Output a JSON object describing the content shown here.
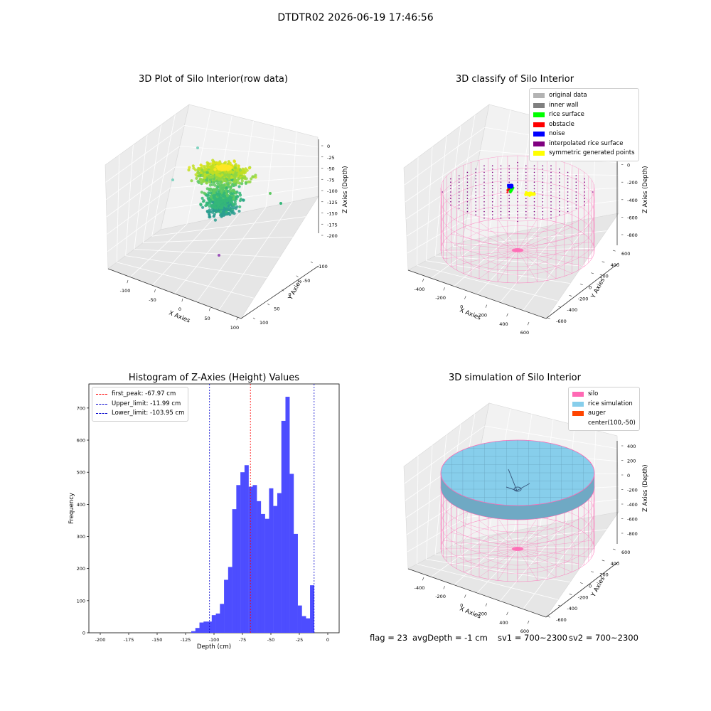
{
  "suptitle": "DTDTR02 2026-06-19 17:46:56",
  "status": {
    "flag": "flag = 23",
    "avg_depth": "avgDepth = -1 cm",
    "sv1": "sv1 = 700~2300",
    "sv2": "sv2 = 700~2300"
  },
  "chart_data": [
    {
      "type": "scatter",
      "title": "3D Plot of Silo Interior(row data)",
      "xlabel": "X Axies",
      "ylabel": "Y Axies",
      "zlabel": "Z Axies (Depth)",
      "x_ticks": [
        "-100",
        "-50",
        "0",
        "50",
        "100"
      ],
      "y_ticks": [
        "-100",
        "-50",
        "0",
        "50",
        "100"
      ],
      "z_ticks": [
        "0",
        "-25",
        "-50",
        "-75",
        "-100",
        "-125",
        "-150",
        "-175",
        "-200"
      ],
      "zlim": [
        -210,
        10
      ],
      "colormap": "viridis",
      "outliers": [
        {
          "x": -110,
          "y": 10,
          "z": -65
        },
        {
          "x": -35,
          "y": 80,
          "z": -10
        },
        {
          "x": 90,
          "y": -30,
          "z": -105
        },
        {
          "x": 30,
          "y": 20,
          "z": -195
        }
      ]
    },
    {
      "type": "scatter",
      "title": "3D classify of Silo Interior",
      "xlabel": "X Axies",
      "ylabel": "Y Axies",
      "zlabel": "Z Axies (Depth)",
      "x_ticks": [
        "-400",
        "-200",
        "0",
        "200",
        "400",
        "600"
      ],
      "y_ticks": [
        "-600",
        "-400",
        "-200",
        "0",
        "200",
        "400",
        "600"
      ],
      "z_ticks": [
        "200",
        "0",
        "-200",
        "-400",
        "-600",
        "-800"
      ],
      "legend": [
        {
          "label": "original data",
          "color": "#b3b3b3"
        },
        {
          "label": "inner wall",
          "color": "#808080"
        },
        {
          "label": "rice surface",
          "color": "#00ff00"
        },
        {
          "label": "obstacle",
          "color": "#ff0000"
        },
        {
          "label": "noise",
          "color": "#0000ff"
        },
        {
          "label": "interpolated rice surface",
          "color": "#800080"
        },
        {
          "label": "symmetric generated points",
          "color": "#ffff00"
        }
      ],
      "silo_color": "#ff69b4"
    },
    {
      "type": "bar",
      "title": "Histogram of Z-Axies (Height) Values",
      "xlabel": "Depth (cm)",
      "ylabel": "Frequency",
      "xlim": [
        -210,
        10
      ],
      "ylim": [
        0,
        775
      ],
      "x_ticks": [
        -200,
        -175,
        -150,
        -125,
        -100,
        -75,
        -50,
        -25,
        0
      ],
      "y_ticks": [
        0,
        100,
        200,
        300,
        400,
        500,
        600,
        700
      ],
      "bar_color": "#4d4dff",
      "bins": {
        "start": -120,
        "width": 3.6,
        "counts": [
          5,
          15,
          32,
          35,
          35,
          55,
          60,
          90,
          165,
          205,
          385,
          460,
          500,
          522,
          455,
          460,
          410,
          370,
          355,
          450,
          395,
          435,
          660,
          735,
          495,
          308,
          85,
          52,
          45,
          148
        ]
      },
      "lines": [
        {
          "label": "first_peak: -67.97 cm",
          "value": -67.97,
          "color": "#ff0000"
        },
        {
          "label": "Upper_limit: -11.99 cm",
          "value": -11.99,
          "color": "#0000cc"
        },
        {
          "label": "Lower_limit: -103.95 cm",
          "value": -103.95,
          "color": "#0000cc"
        }
      ]
    },
    {
      "type": "scatter",
      "title": "3D simulation of Silo Interior",
      "xlabel": "X Axies",
      "ylabel": "Y Axies",
      "zlabel": "Z Axies (Depth)",
      "x_ticks": [
        "-400",
        "-200",
        "0",
        "200",
        "400",
        "600"
      ],
      "y_ticks": [
        "-600",
        "-400",
        "-200",
        "0",
        "200",
        "400",
        "600"
      ],
      "z_ticks": [
        "400",
        "200",
        "0",
        "-200",
        "-400",
        "-600",
        "-800"
      ],
      "legend": [
        {
          "label": "silo",
          "color": "#ff69b4"
        },
        {
          "label": "rice simulation",
          "color": "#87ceeb"
        },
        {
          "label": "auger",
          "color": "#ff4500"
        },
        {
          "label": "center(100,-50)",
          "color": ""
        }
      ],
      "silo_color": "#ff69b4",
      "rice_color": "#87ceeb"
    }
  ]
}
